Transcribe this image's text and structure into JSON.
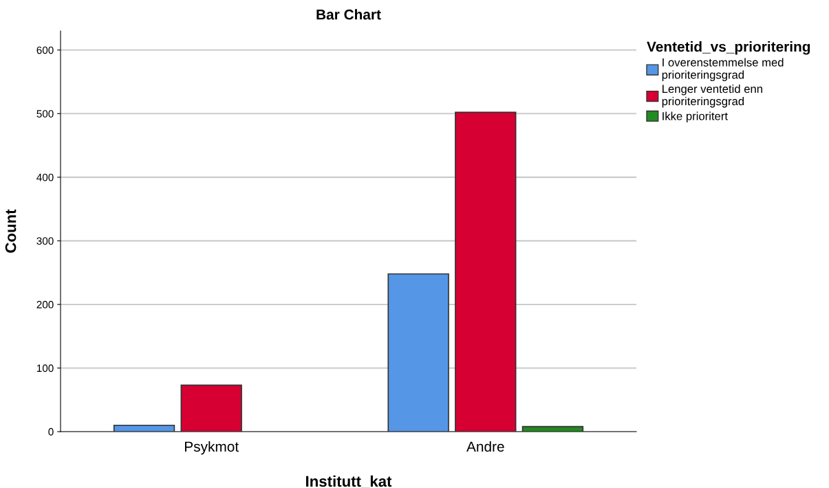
{
  "chart_data": {
    "type": "bar",
    "title": "Bar Chart",
    "xlabel": "Institutt_kat",
    "ylabel": "Count",
    "legend_title": "Ventetid_vs_prioritering",
    "categories": [
      "Psykmot",
      "Andre"
    ],
    "series": [
      {
        "name": "I overenstemmelse med\nprioriteringsgrad",
        "color": "#5596e6",
        "values": [
          10,
          248
        ]
      },
      {
        "name": "Lenger ventetid enn\nprioriteringsgrad",
        "color": "#d70033",
        "values": [
          73,
          502
        ]
      },
      {
        "name": "Ikke prioritert",
        "color": "#238b21",
        "values": [
          null,
          8
        ]
      }
    ],
    "ylim": [
      0,
      630
    ],
    "yticks": [
      0,
      100,
      200,
      300,
      400,
      500,
      600
    ],
    "grid": "y",
    "legend": "top right"
  }
}
